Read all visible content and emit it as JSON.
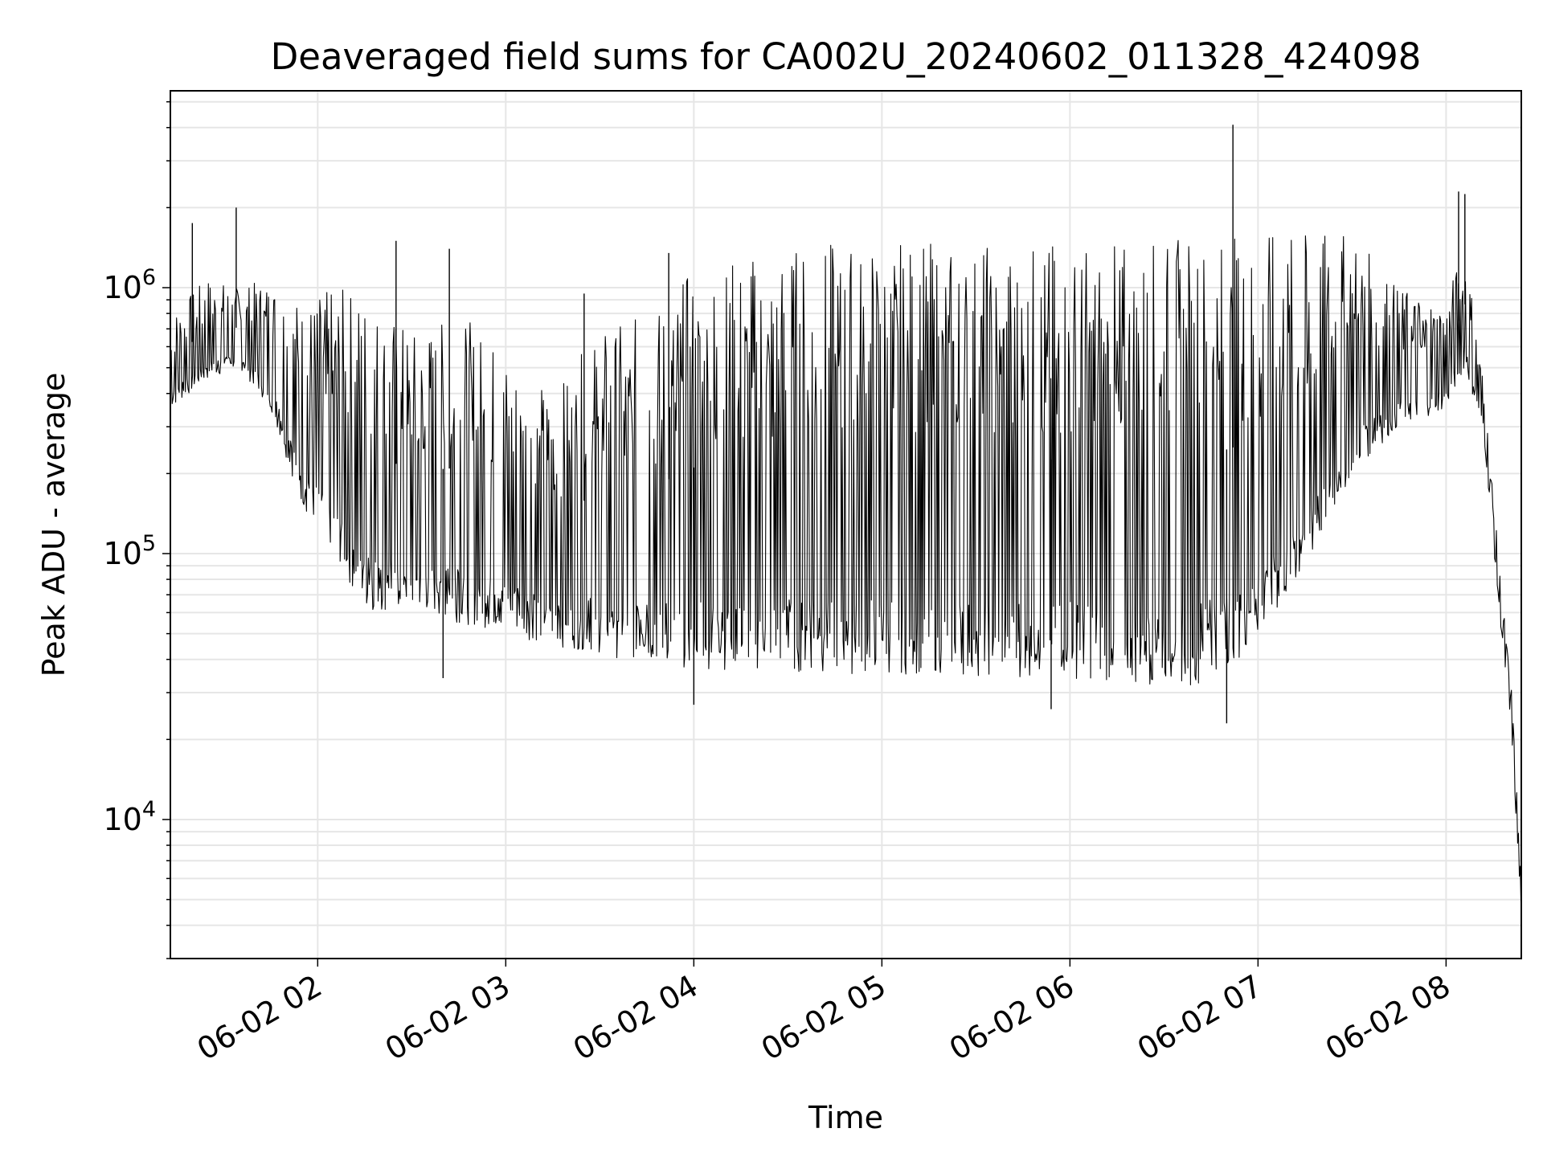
{
  "chart_data": {
    "type": "line",
    "title": "Deaveraged field sums for CA002U_20240602_011328_424098",
    "xlabel": "Time",
    "ylabel": "Peak ADU - average",
    "yscale": "log",
    "grid": true,
    "x_range": [
      "2024-06-02T01:13",
      "2024-06-02T08:24"
    ],
    "y_range": [
      3000,
      5500000
    ],
    "x_ticks": [
      {
        "time": "2024-06-02T02:00",
        "label": "06-02 02"
      },
      {
        "time": "2024-06-02T03:00",
        "label": "06-02 03"
      },
      {
        "time": "2024-06-02T04:00",
        "label": "06-02 04"
      },
      {
        "time": "2024-06-02T05:00",
        "label": "06-02 05"
      },
      {
        "time": "2024-06-02T06:00",
        "label": "06-02 06"
      },
      {
        "time": "2024-06-02T07:00",
        "label": "06-02 07"
      },
      {
        "time": "2024-06-02T08:00",
        "label": "06-02 08"
      }
    ],
    "y_ticks": [
      {
        "value": 10000,
        "base": "10",
        "exp": "4"
      },
      {
        "value": 100000,
        "base": "10",
        "exp": "5"
      },
      {
        "value": 1000000,
        "base": "10",
        "exp": "6"
      }
    ],
    "series": [
      {
        "color": "#000000",
        "points": [
          {
            "t": "2024-06-02T01:13",
            "low": 350000,
            "high": 800000
          },
          {
            "t": "2024-06-02T01:25",
            "low": 450000,
            "high": 1100000
          },
          {
            "t": "2024-06-02T01:35",
            "low": 500000,
            "high": 1000000
          },
          {
            "t": "2024-06-02T01:45",
            "low": 350000,
            "high": 1100000
          },
          {
            "t": "2024-06-02T01:55",
            "low": 150000,
            "high": 900000
          },
          {
            "t": "2024-06-02T02:05",
            "low": 100000,
            "high": 1000000
          },
          {
            "t": "2024-06-02T02:15",
            "low": 60000,
            "high": 1000000
          },
          {
            "t": "2024-06-02T02:30",
            "low": 60000,
            "high": 700000
          },
          {
            "t": "2024-06-02T02:45",
            "low": 55000,
            "high": 800000
          },
          {
            "t": "2024-06-02T03:00",
            "low": 50000,
            "high": 600000
          },
          {
            "t": "2024-06-02T03:15",
            "low": 45000,
            "high": 400000
          },
          {
            "t": "2024-06-02T03:30",
            "low": 42000,
            "high": 700000
          },
          {
            "t": "2024-06-02T03:45",
            "low": 38000,
            "high": 800000
          },
          {
            "t": "2024-06-02T04:00",
            "low": 37000,
            "high": 1200000
          },
          {
            "t": "2024-06-02T04:20",
            "low": 36000,
            "high": 1400000
          },
          {
            "t": "2024-06-02T04:40",
            "low": 35000,
            "high": 1500000
          },
          {
            "t": "2024-06-02T05:00",
            "low": 35000,
            "high": 1500000
          },
          {
            "t": "2024-06-02T05:20",
            "low": 35000,
            "high": 1500000
          },
          {
            "t": "2024-06-02T05:40",
            "low": 34000,
            "high": 1500000
          },
          {
            "t": "2024-06-02T06:00",
            "low": 34000,
            "high": 1500000
          },
          {
            "t": "2024-06-02T06:20",
            "low": 32000,
            "high": 1500000
          },
          {
            "t": "2024-06-02T06:40",
            "low": 32000,
            "high": 1600000
          },
          {
            "t": "2024-06-02T07:00",
            "low": 45000,
            "high": 1600000
          },
          {
            "t": "2024-06-02T07:15",
            "low": 80000,
            "high": 1600000
          },
          {
            "t": "2024-06-02T07:30",
            "low": 200000,
            "high": 1600000
          },
          {
            "t": "2024-06-02T07:45",
            "low": 300000,
            "high": 1000000
          },
          {
            "t": "2024-06-02T08:00",
            "low": 350000,
            "high": 900000
          },
          {
            "t": "2024-06-02T08:06",
            "low": 500000,
            "high": 1500000
          },
          {
            "t": "2024-06-02T08:12",
            "low": 280000,
            "high": 450000
          },
          {
            "t": "2024-06-02T08:17",
            "low": 60000,
            "high": 90000
          },
          {
            "t": "2024-06-02T08:21",
            "low": 20000,
            "high": 30000
          },
          {
            "t": "2024-06-02T08:24",
            "low": 4200,
            "high": 6000
          }
        ],
        "spikes": [
          {
            "t": "2024-06-02T01:20",
            "value": 1750000
          },
          {
            "t": "2024-06-02T01:34",
            "value": 2000000
          },
          {
            "t": "2024-06-02T02:25",
            "value": 1500000
          },
          {
            "t": "2024-06-02T02:42",
            "value": 1400000
          },
          {
            "t": "2024-06-02T03:25",
            "value": 950000
          },
          {
            "t": "2024-06-02T03:52",
            "value": 1350000
          },
          {
            "t": "2024-06-02T06:52",
            "value": 4100000
          },
          {
            "t": "2024-06-02T06:50",
            "value": 23000
          },
          {
            "t": "2024-06-02T08:04",
            "value": 2300000
          },
          {
            "t": "2024-06-02T08:06",
            "value": 2250000
          },
          {
            "t": "2024-06-02T04:00",
            "value": 27000
          },
          {
            "t": "2024-06-02T05:54",
            "value": 26000
          },
          {
            "t": "2024-06-02T02:40",
            "value": 34000
          }
        ]
      }
    ]
  }
}
